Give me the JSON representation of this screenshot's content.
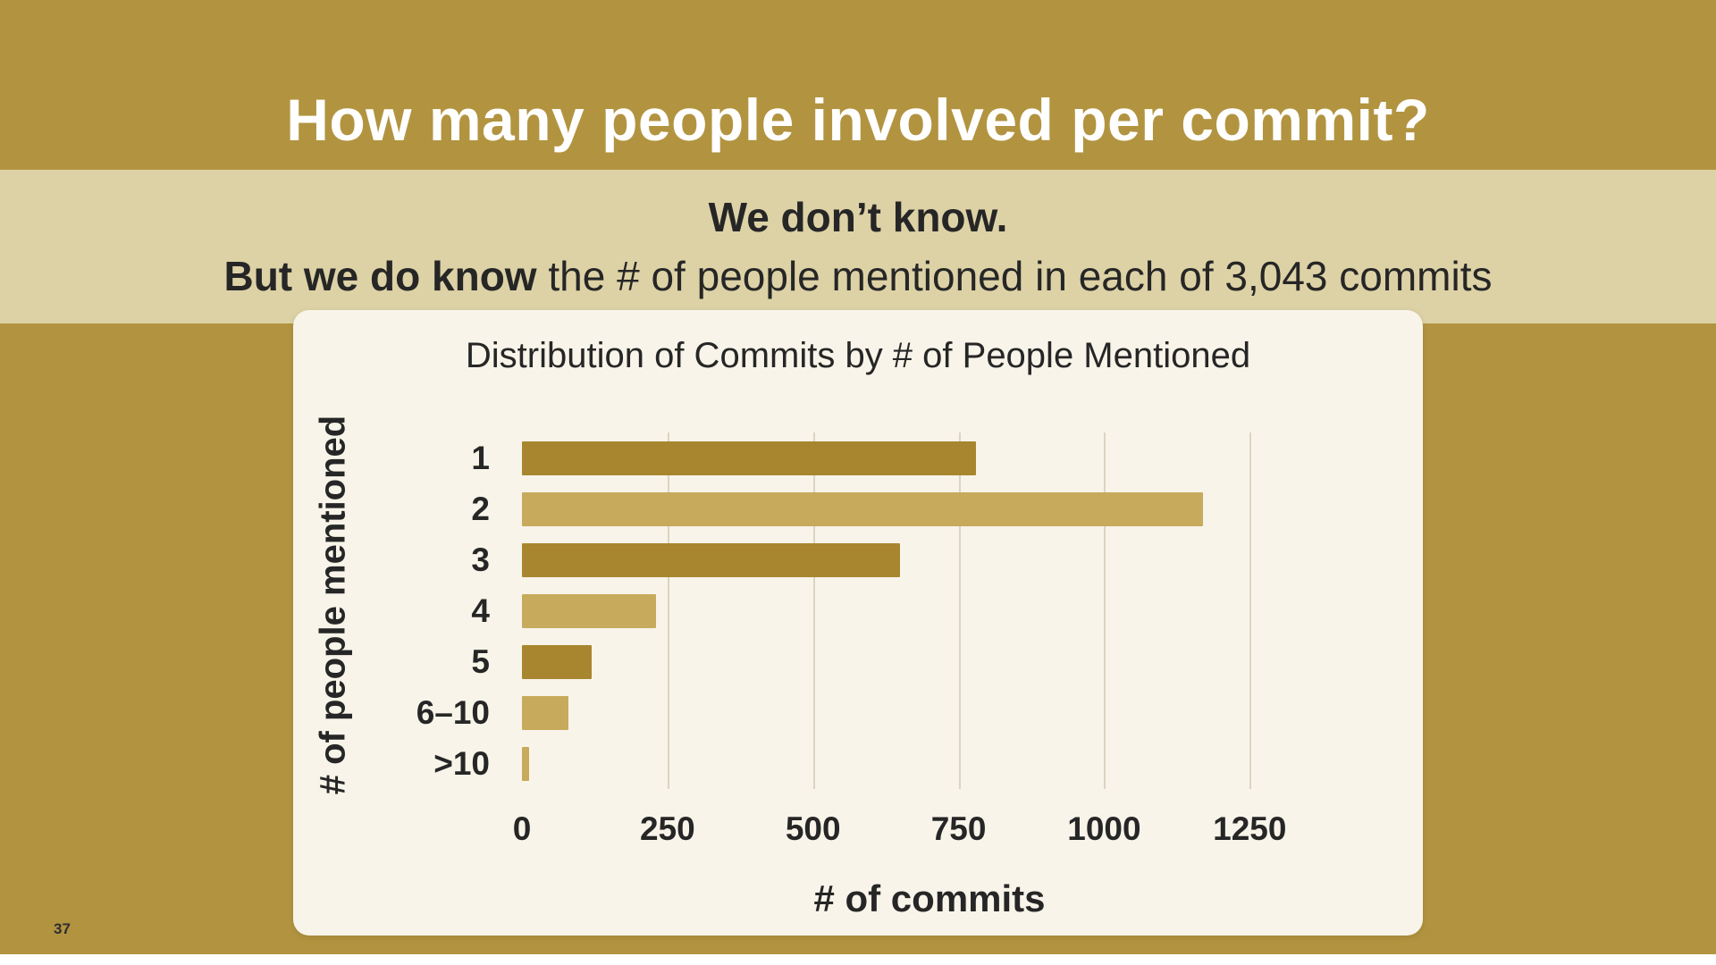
{
  "slide": {
    "title": "How many people involved per commit?",
    "page_number": "37"
  },
  "subtitle": {
    "line1": "We don’t know.",
    "line2_bold": "But we do know",
    "line2_rest": " the # of people mentioned in each of 3,043 commits"
  },
  "chart_data": {
    "type": "bar",
    "orientation": "horizontal",
    "title": "Distribution of Commits by # of People Mentioned",
    "xlabel": "# of commits",
    "ylabel": "# of people mentioned",
    "categories": [
      "1",
      "2",
      "3",
      "4",
      "5",
      "6–10",
      ">10"
    ],
    "values": [
      780,
      1170,
      650,
      230,
      120,
      80,
      13
    ],
    "total_commits": "3,043",
    "xlim": [
      0,
      1400
    ],
    "xticks": [
      0,
      250,
      500,
      750,
      1000,
      1250
    ],
    "grid": "vertical",
    "legend": "none",
    "bar_colors": [
      "#A8862F",
      "#C7AA5C",
      "#A8862F",
      "#C7AA5C",
      "#A8862F",
      "#C7AA5C",
      "#C7AA5C"
    ]
  },
  "colors": {
    "background": "#B29440",
    "subtitle_band": "#DDD2A6",
    "panel": "#F8F4E9",
    "title_text": "#FFFFFF",
    "dark_text": "#262626",
    "grid": "#DAD5C2",
    "bar_dark": "#A8862F",
    "bar_light": "#C7AA5C"
  }
}
